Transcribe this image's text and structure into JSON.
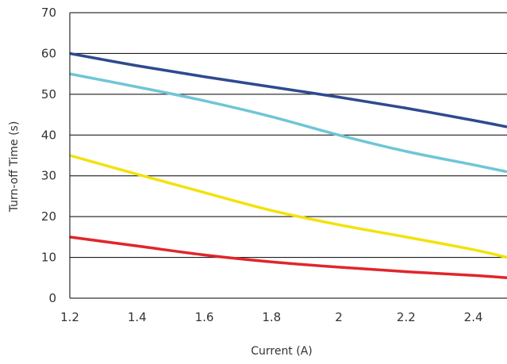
{
  "chart_data": {
    "type": "line",
    "title": "",
    "xlabel": "Current (A)",
    "ylabel": "Turn-off Time (s)",
    "xlim": [
      1.2,
      2.5
    ],
    "ylim": [
      0,
      70
    ],
    "xticks": [
      1.2,
      1.4,
      1.6,
      1.8,
      2,
      2.2,
      2.4
    ],
    "xtick_labels": [
      "1.2",
      "1.4",
      "1.6",
      "1.8",
      "2",
      "2.2",
      "2.4"
    ],
    "yticks": [
      0,
      10,
      20,
      30,
      40,
      50,
      60,
      70
    ],
    "ytick_labels": [
      "0",
      "10",
      "20",
      "30",
      "40",
      "50",
      "60",
      "70"
    ],
    "grid": "horizontal",
    "legend": "none",
    "x": [
      1.2,
      1.4,
      1.6,
      1.8,
      2.0,
      2.2,
      2.4,
      2.5
    ],
    "series": [
      {
        "color": "#2e4a8f",
        "values": [
          60,
          57,
          54.3,
          51.8,
          49.3,
          46.6,
          43.6,
          42
        ]
      },
      {
        "color": "#6ec6d6",
        "values": [
          55,
          51.8,
          48.4,
          44.5,
          40,
          36,
          32.7,
          31
        ]
      },
      {
        "color": "#f2e20c",
        "values": [
          35,
          30.4,
          25.9,
          21.5,
          18,
          15,
          11.9,
          10
        ]
      },
      {
        "color": "#e0262a",
        "values": [
          15,
          12.8,
          10.6,
          8.9,
          7.6,
          6.5,
          5.6,
          5
        ]
      }
    ]
  }
}
